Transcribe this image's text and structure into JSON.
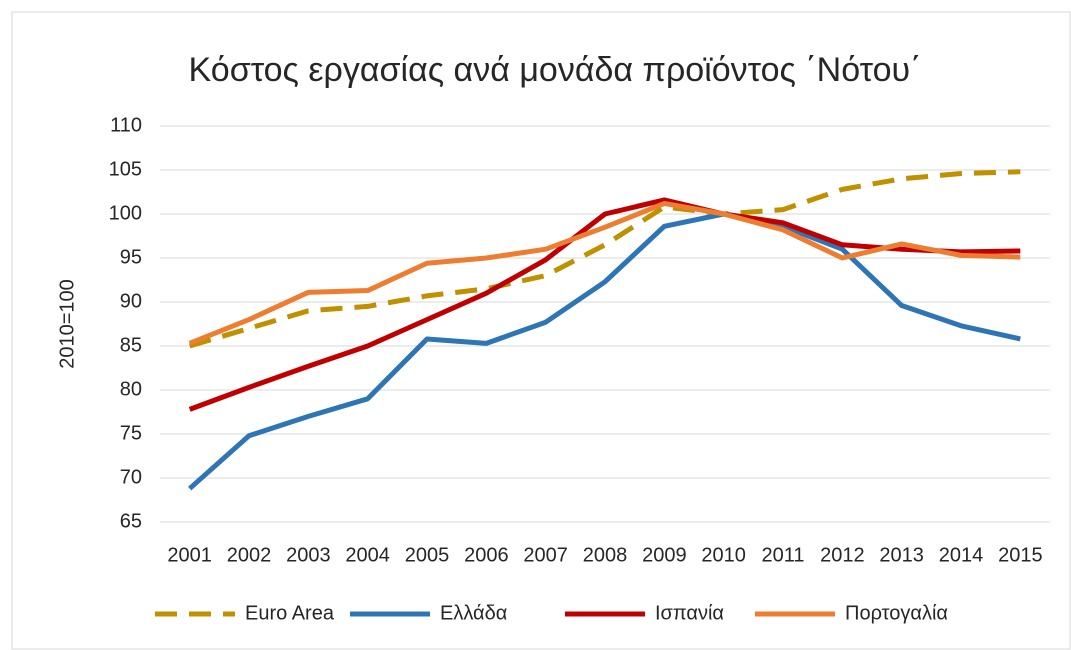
{
  "chart_data": {
    "type": "line",
    "title": "Κόστος εργασίας ανά μονάδα προϊόντος ΄Νότου΄",
    "ylabel": "2010=100",
    "categories": [
      "2001",
      "2002",
      "2003",
      "2004",
      "2005",
      "2006",
      "2007",
      "2008",
      "2009",
      "2010",
      "2011",
      "2012",
      "2013",
      "2014",
      "2015"
    ],
    "series": [
      {
        "name": "Euro Area",
        "color": "#bf9000",
        "dashed": true,
        "values": [
          85,
          87,
          89,
          89.5,
          90.7,
          91.5,
          93,
          96.5,
          100.8,
          100,
          100.5,
          102.8,
          104,
          104.6,
          104.8
        ]
      },
      {
        "name": "Ελλάδα",
        "color": "#2e75b6",
        "values": [
          68.8,
          74.8,
          77,
          79,
          85.8,
          85.3,
          87.7,
          92.3,
          98.6,
          100,
          98.6,
          96,
          89.6,
          87.3,
          85.8
        ]
      },
      {
        "name": "Ισπανία",
        "color": "#c00000",
        "values": [
          77.8,
          80.3,
          82.7,
          85,
          88,
          91,
          94.8,
          100,
          101.6,
          100,
          99,
          96.5,
          96,
          95.7,
          95.8
        ]
      },
      {
        "name": "Πορτογαλία",
        "color": "#ed7d31",
        "values": [
          85.3,
          88,
          91.1,
          91.3,
          94.4,
          95,
          96,
          98.5,
          101.2,
          100,
          98.2,
          95,
          96.6,
          95.3,
          95.1
        ]
      }
    ],
    "ylim": [
      65,
      110
    ],
    "yticks": [
      65,
      70,
      75,
      80,
      85,
      90,
      95,
      100,
      105,
      110
    ],
    "grid": true,
    "legend": "bottom"
  }
}
